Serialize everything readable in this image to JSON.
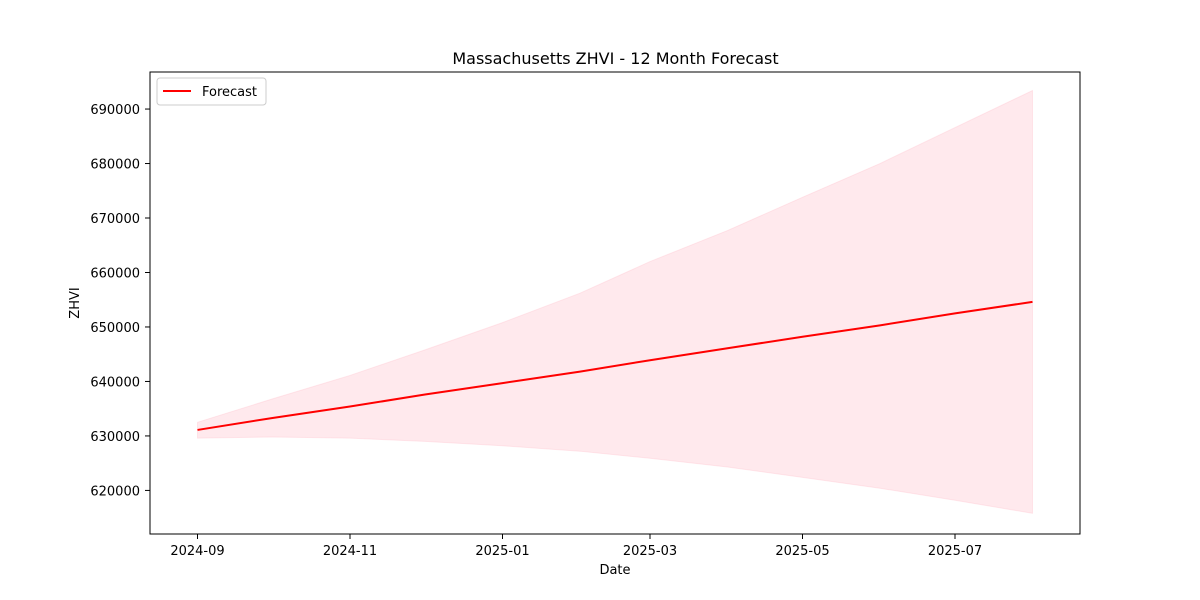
{
  "chart_data": {
    "type": "line",
    "title": "Massachusetts ZHVI - 12 Month Forecast",
    "xlabel": "Date",
    "ylabel": "ZHVI",
    "x_type": "date",
    "xlim": [
      "2024-08-13",
      "2025-08-20"
    ],
    "ylim": [
      612000,
      696800
    ],
    "x_ticks": [
      "2024-09",
      "2024-11",
      "2025-01",
      "2025-03",
      "2025-05",
      "2025-07"
    ],
    "y_ticks": [
      620000,
      630000,
      640000,
      650000,
      660000,
      670000,
      680000,
      690000
    ],
    "grid": false,
    "legend_position": "upper-left",
    "colors": {
      "forecast_line": "#ff0000",
      "interval_fill": "#ffc0cb"
    },
    "x": [
      "2024-09-01",
      "2024-10-01",
      "2024-11-01",
      "2024-12-01",
      "2025-01-01",
      "2025-02-01",
      "2025-03-01",
      "2025-04-01",
      "2025-05-01",
      "2025-06-01",
      "2025-07-01",
      "2025-08-01"
    ],
    "series": [
      {
        "name": "Forecast",
        "values": [
          631100,
          633300,
          635400,
          637600,
          639700,
          641800,
          643900,
          646100,
          648200,
          650300,
          652500,
          654600
        ]
      }
    ],
    "interval": {
      "lower": [
        629600,
        629800,
        629600,
        629000,
        628200,
        627200,
        625900,
        624300,
        622400,
        620400,
        618200,
        615800
      ],
      "upper": [
        632500,
        636800,
        641100,
        645800,
        650800,
        656200,
        662000,
        667700,
        673800,
        680000,
        686600,
        693400
      ]
    }
  }
}
